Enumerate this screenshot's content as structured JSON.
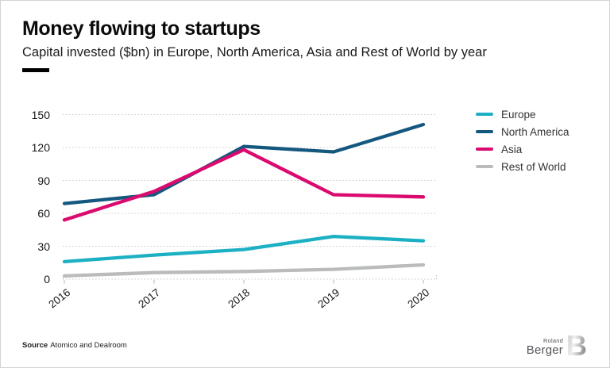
{
  "header": {
    "title": "Money flowing to startups",
    "subtitle": "Capital invested ($bn) in Europe, North America, Asia and Rest of World by year"
  },
  "chart_data": {
    "type": "line",
    "x": [
      2016,
      2017,
      2018,
      2019,
      2020
    ],
    "series": [
      {
        "name": "Europe",
        "color": "#1cb0c4",
        "values": [
          16,
          22,
          27,
          39,
          35
        ]
      },
      {
        "name": "North America",
        "color": "#15587f",
        "values": [
          69,
          77,
          121,
          116,
          141
        ]
      },
      {
        "name": "Asia",
        "color": "#db0a6e",
        "values": [
          54,
          80,
          118,
          77,
          75
        ]
      },
      {
        "name": "Rest of World",
        "color": "#b9bbbd",
        "values": [
          3,
          6,
          7,
          9,
          13
        ]
      }
    ],
    "yticks": [
      0,
      30,
      60,
      90,
      120,
      150
    ],
    "ylim": [
      0,
      150
    ],
    "xlabel": "",
    "ylabel": "",
    "grid": "dotted-horizontal",
    "legend_position": "right",
    "grid_color": "#c8c8c8",
    "tick_color": "#b5b5b5"
  },
  "footer": {
    "source_label": "Source",
    "source_text": "Atomico and Dealroom"
  },
  "logo": {
    "top": "Roland",
    "bottom": "Berger",
    "mark": "B"
  }
}
